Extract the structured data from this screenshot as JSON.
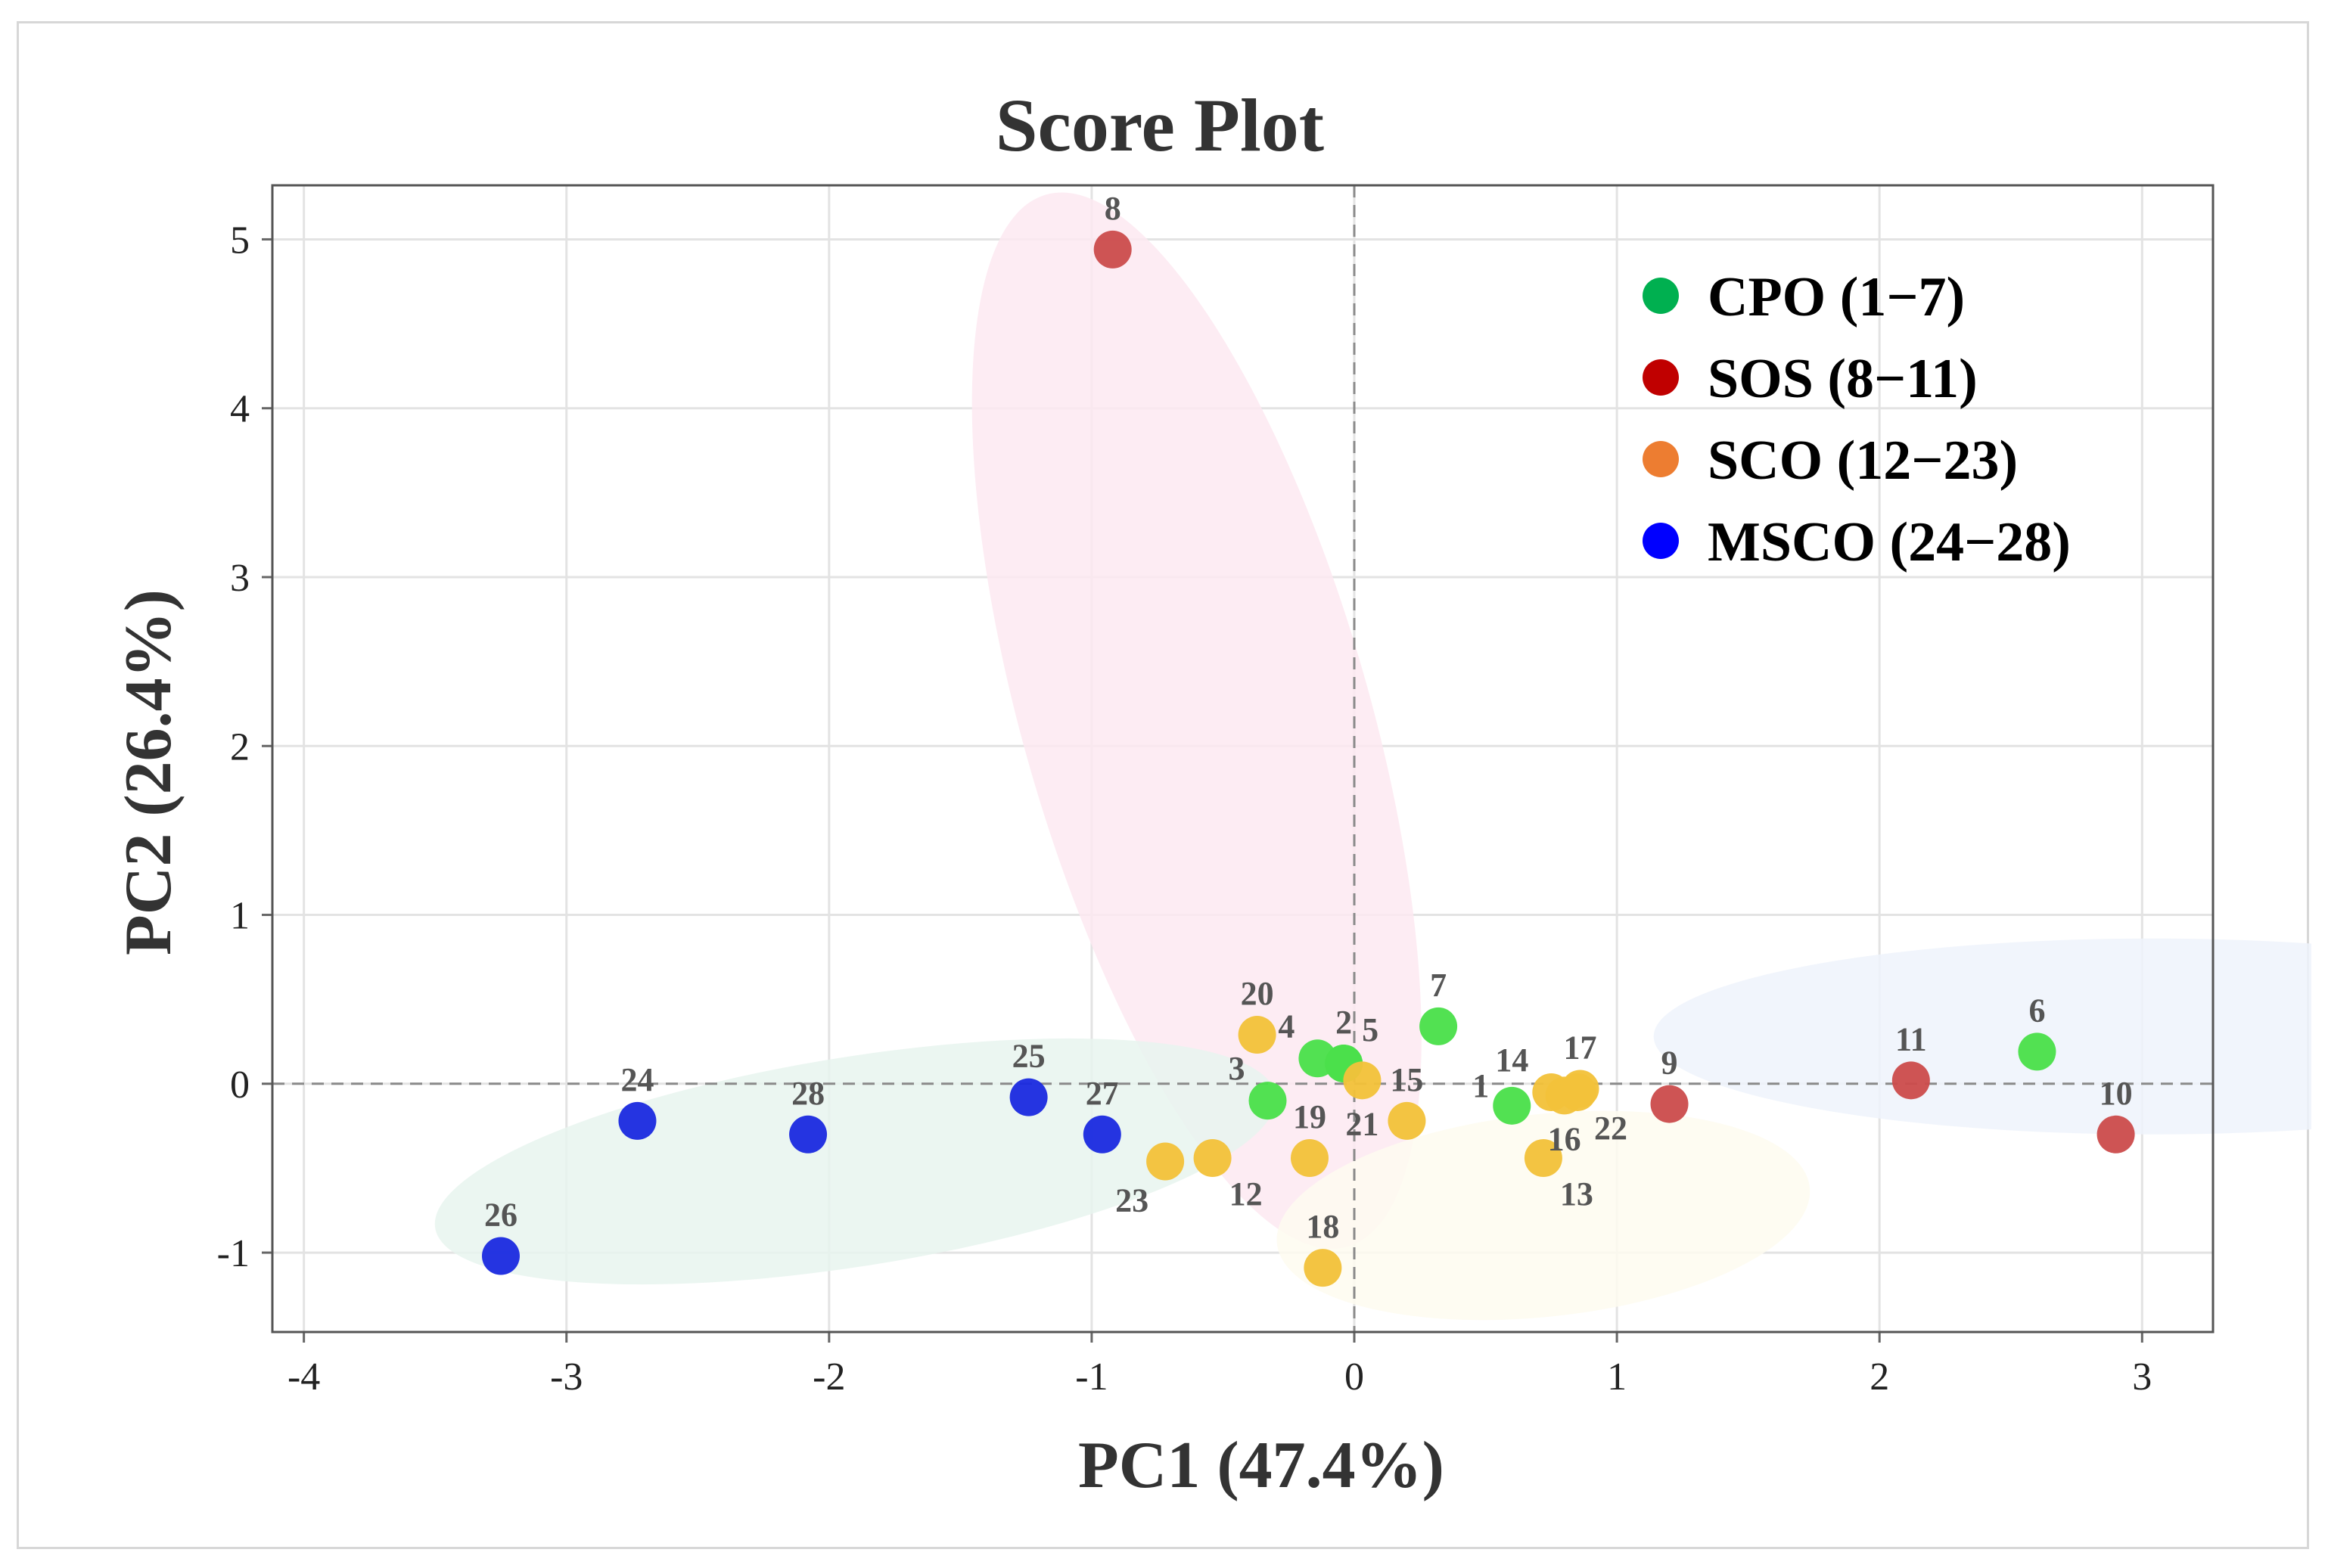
{
  "chart_data": {
    "type": "scatter",
    "title": "Score Plot",
    "xlabel": "PC1 (47.4%)",
    "ylabel": "PC2 (26.4%)",
    "xlim": [
      -4.12,
      3.27
    ],
    "ylim": [
      -1.47,
      5.32
    ],
    "xticks": [
      -4,
      -3,
      -2,
      -1,
      0,
      1,
      2,
      3
    ],
    "yticks": [
      -1,
      0,
      1,
      2,
      3,
      4,
      5
    ],
    "grid": true,
    "reference_lines": {
      "x": 0,
      "y": 0,
      "style": "dashed"
    },
    "legend": {
      "position": "top-right",
      "entries": [
        {
          "label": "CPO (1−7)",
          "color": "#00b050"
        },
        {
          "label": "SOS (8−11)",
          "color": "#c00000"
        },
        {
          "label": "SCO (12−23)",
          "color": "#ed7d31"
        },
        {
          "label": "MSCO (24−28)",
          "color": "#0000ff"
        }
      ]
    },
    "series": [
      {
        "name": "CPO (1−7)",
        "color": "#4be04b",
        "ellipse": {
          "cx": 3.04,
          "cy": 0.28,
          "rx": 1.9,
          "ry": 0.58,
          "angle": 0,
          "fill": "#eef3fb"
        },
        "points": [
          {
            "label": "1",
            "x": 0.6,
            "y": -0.13,
            "label_pos": "left"
          },
          {
            "label": "2",
            "x": -0.04,
            "y": 0.12,
            "label_pos": "top"
          },
          {
            "label": "3",
            "x": -0.33,
            "y": -0.1,
            "label_pos": "topleft"
          },
          {
            "label": "4",
            "x": -0.14,
            "y": 0.15,
            "label_pos": "topleft"
          },
          {
            "label": "5",
            "x": -0.04,
            "y": 0.12,
            "label_pos": "topright"
          },
          {
            "label": "6",
            "x": 2.6,
            "y": 0.19,
            "label_pos": "top"
          },
          {
            "label": "7",
            "x": 0.32,
            "y": 0.34,
            "label_pos": "top"
          }
        ]
      },
      {
        "name": "SOS (8−11)",
        "color": "#cc4d4d",
        "ellipse": {
          "cx": -0.6,
          "cy": 2.15,
          "rx": 0.66,
          "ry": 3.24,
          "angle": -16,
          "fill": "#fde9f1"
        },
        "points": [
          {
            "label": "8",
            "x": -0.92,
            "y": 4.94,
            "label_pos": "top"
          },
          {
            "label": "9",
            "x": 1.2,
            "y": -0.12,
            "label_pos": "top"
          },
          {
            "label": "10",
            "x": 2.9,
            "y": -0.3,
            "label_pos": "top"
          },
          {
            "label": "11",
            "x": 2.12,
            "y": 0.02,
            "label_pos": "top"
          }
        ]
      },
      {
        "name": "SCO (12−23)",
        "color": "#f2c23a",
        "ellipse": {
          "cx": 0.72,
          "cy": -0.78,
          "rx": 1.02,
          "ry": 0.6,
          "angle": -6,
          "fill": "#fefcf0"
        },
        "points": [
          {
            "label": "12",
            "x": -0.54,
            "y": -0.44,
            "label_pos": "belowright"
          },
          {
            "label": "13",
            "x": 0.72,
            "y": -0.44,
            "label_pos": "belowright"
          },
          {
            "label": "14",
            "x": 0.75,
            "y": -0.05,
            "label_pos": "topleft"
          },
          {
            "label": "15",
            "x": 0.2,
            "y": -0.22,
            "label_pos": "top"
          },
          {
            "label": "16",
            "x": 0.8,
            "y": -0.07,
            "label_pos": "below"
          },
          {
            "label": "17",
            "x": 0.86,
            "y": -0.03,
            "label_pos": "top"
          },
          {
            "label": "18",
            "x": -0.12,
            "y": -1.09,
            "label_pos": "top"
          },
          {
            "label": "19",
            "x": -0.17,
            "y": -0.44,
            "label_pos": "top"
          },
          {
            "label": "20",
            "x": -0.37,
            "y": 0.29,
            "label_pos": "top"
          },
          {
            "label": "21",
            "x": 0.03,
            "y": 0.02,
            "label_pos": "below"
          },
          {
            "label": "22",
            "x": 0.85,
            "y": -0.05,
            "label_pos": "belowright"
          },
          {
            "label": "23",
            "x": -0.72,
            "y": -0.46,
            "label_pos": "belowleft"
          }
        ]
      },
      {
        "name": "MSCO (24−28)",
        "color": "#1c2ce0",
        "ellipse": {
          "cx": -1.9,
          "cy": -0.46,
          "rx": 1.62,
          "ry": 0.62,
          "angle": -9,
          "fill": "#e8f5ef"
        },
        "points": [
          {
            "label": "24",
            "x": -2.73,
            "y": -0.22,
            "label_pos": "top"
          },
          {
            "label": "25",
            "x": -1.24,
            "y": -0.08,
            "label_pos": "top"
          },
          {
            "label": "26",
            "x": -3.25,
            "y": -1.02,
            "label_pos": "top"
          },
          {
            "label": "27",
            "x": -0.96,
            "y": -0.3,
            "label_pos": "top"
          },
          {
            "label": "28",
            "x": -2.08,
            "y": -0.3,
            "label_pos": "top"
          }
        ]
      }
    ]
  }
}
